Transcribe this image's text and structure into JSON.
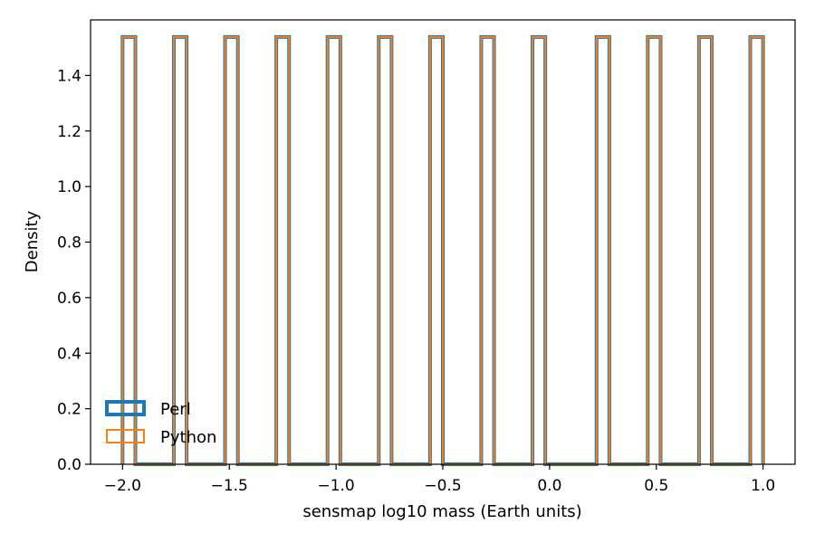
{
  "chart_data": {
    "type": "histogram",
    "xlabel": "sensmap log10 mass (Earth units)",
    "ylabel": "Density",
    "xlim": [
      -2.15,
      1.15
    ],
    "ylim": [
      0.0,
      1.6
    ],
    "grid": false,
    "legend_position": "lower-left",
    "x_ticks": [
      {
        "value": -2.0,
        "label": "−2.0"
      },
      {
        "value": -1.5,
        "label": "−1.5"
      },
      {
        "value": -1.0,
        "label": "−1.0"
      },
      {
        "value": -0.5,
        "label": "−0.5"
      },
      {
        "value": 0.0,
        "label": "0.0"
      },
      {
        "value": 0.5,
        "label": "0.5"
      },
      {
        "value": 1.0,
        "label": "1.0"
      }
    ],
    "y_ticks": [
      {
        "value": 0.0,
        "label": "0.0"
      },
      {
        "value": 0.2,
        "label": "0.2"
      },
      {
        "value": 0.4,
        "label": "0.4"
      },
      {
        "value": 0.6,
        "label": "0.6"
      },
      {
        "value": 0.8,
        "label": "0.8"
      },
      {
        "value": 1.0,
        "label": "1.0"
      },
      {
        "value": 1.2,
        "label": "1.2"
      },
      {
        "value": 1.4,
        "label": "1.4"
      }
    ],
    "bin_range": [
      -2.0,
      1.0
    ],
    "bin_count": 50,
    "series": [
      {
        "name": "Perl",
        "color": "#1f77b4",
        "stroke_weight": "thick",
        "bins_filled": [
          0,
          4,
          8,
          12,
          16,
          20,
          24,
          28,
          32,
          37,
          41,
          45,
          49
        ],
        "density": 1.5385
      },
      {
        "name": "Python",
        "color": "#ff7f0e",
        "stroke_weight": "thin",
        "bins_filled": [
          0,
          4,
          8,
          12,
          16,
          20,
          24,
          28,
          32,
          37,
          41,
          45,
          49
        ],
        "density": 1.5385
      }
    ]
  }
}
